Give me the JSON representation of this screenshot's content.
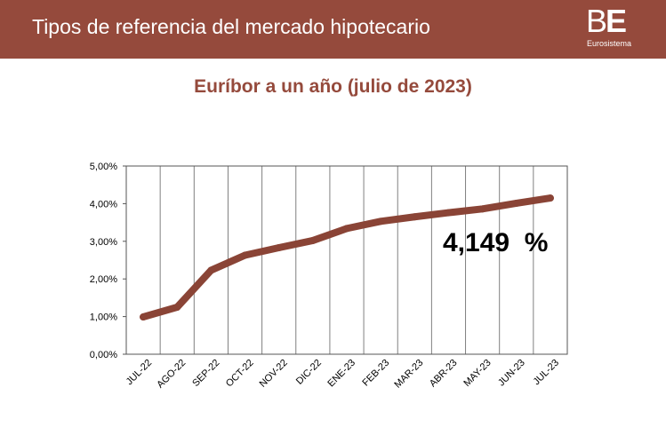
{
  "header": {
    "title": "Tipos de referencia del mercado hipotecario",
    "logo_mark_b": "B",
    "logo_mark_e": "E",
    "logo_subtitle": "Eurosistema"
  },
  "colors": {
    "header_bg": "#954a3c",
    "line": "#8a4436",
    "title": "#954a3c",
    "grid": "#808080"
  },
  "chart_data": {
    "type": "line",
    "title": "Euríbor a un año (julio de 2023)",
    "categories": [
      "JUL-22",
      "AGO-22",
      "SEP-22",
      "OCT-22",
      "NOV-22",
      "DIC-22",
      "ENE-23",
      "FEB-23",
      "MAR-23",
      "ABR-23",
      "MAY-23",
      "JUN-23",
      "JUL-23"
    ],
    "series": [
      {
        "values": [
          0.99,
          1.25,
          2.23,
          2.63,
          2.83,
          3.02,
          3.34,
          3.53,
          3.65,
          3.76,
          3.86,
          4.01,
          4.149
        ]
      }
    ],
    "ylim": [
      0,
      5
    ],
    "yticks": [
      0,
      1,
      2,
      3,
      4,
      5
    ],
    "ytick_labels": [
      "0,00%",
      "1,00%",
      "2,00%",
      "3,00%",
      "4,00%",
      "5,00%"
    ],
    "grid": "vertical",
    "annotation": "4,149  %",
    "xlabel": "",
    "ylabel": ""
  }
}
